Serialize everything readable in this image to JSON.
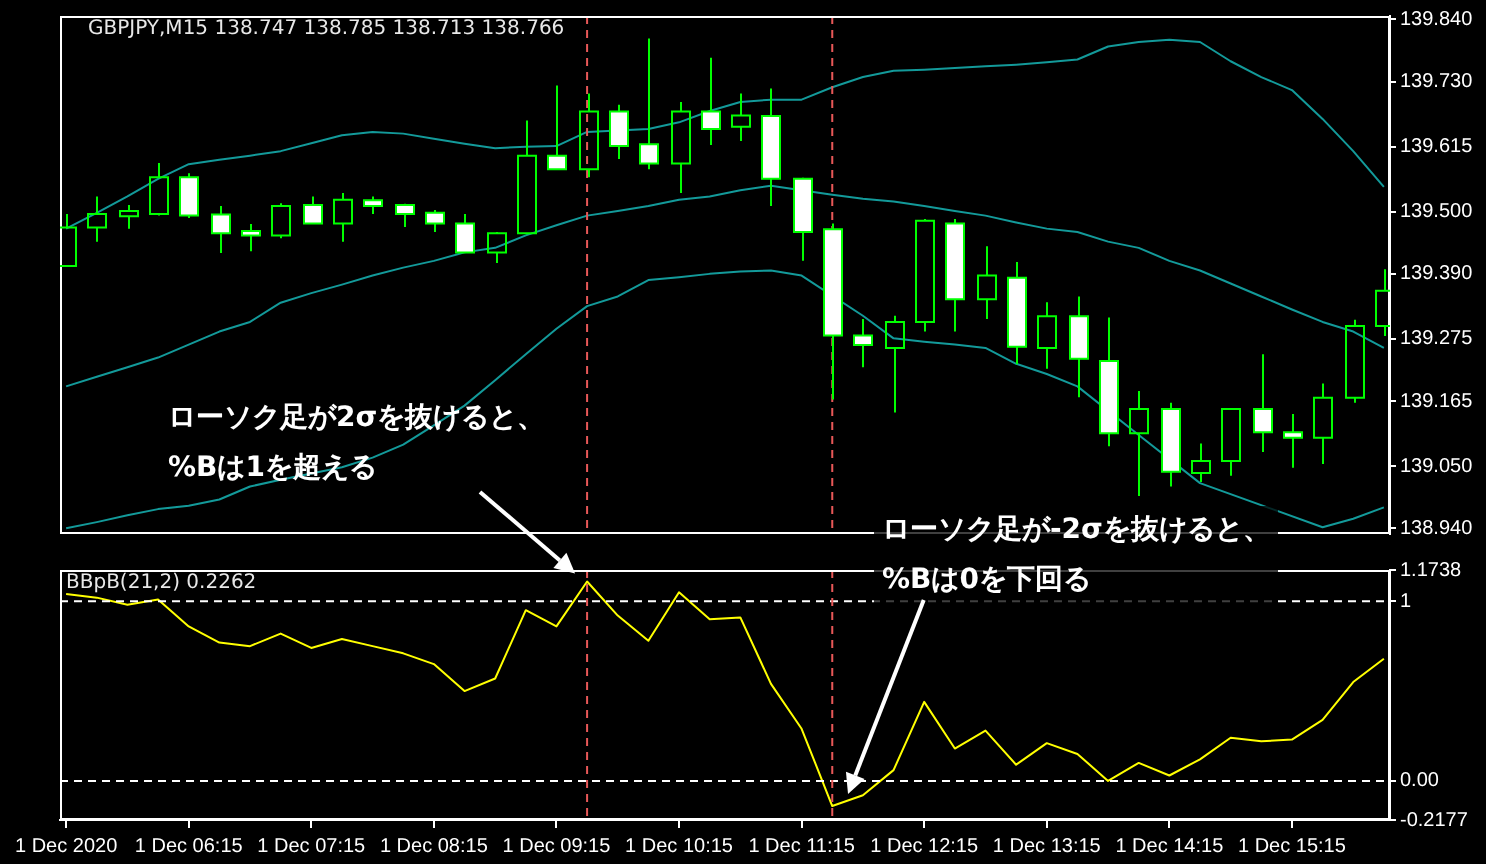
{
  "chart_data": [
    {
      "type": "candlestick",
      "title": "GBPJPY,M15 138.747 138.785 138.713 138.766",
      "color": "#00ff00",
      "colors": [
        "#00ff00",
        "#00ff00",
        "#00ff00",
        "#00ff00",
        "#ffffff",
        "#ffffff",
        "#ffffff",
        "#00ff00",
        "#ffffff",
        "#00ff00",
        "#ffffff",
        "#ffffff",
        "#ffffff",
        "#ffffff",
        "#00ff00",
        "#00ff00",
        "#ffffff",
        "#00ff00",
        "#ffffff",
        "#ffffff",
        "#00ff00",
        "#ffffff",
        "#00ff00",
        "#ffffff",
        "#ffffff",
        "#ffffff",
        "#ffffff",
        "#00ff00",
        "#00ff00",
        "#ffffff",
        "#00ff00",
        "#ffffff",
        "#00ff00",
        "#ffffff",
        "#ffffff",
        "#00ff00",
        "#ffffff",
        "#00ff00",
        "#00ff00",
        "#ffffff",
        "#ffffff",
        "#00ff00",
        "#00ff00",
        "#00ff00"
      ],
      "x": [
        "2020-12-01T05:15",
        "2020-12-01T05:30",
        "2020-12-01T05:45",
        "2020-12-01T06:00",
        "2020-12-01T06:15",
        "2020-12-01T06:30",
        "2020-12-01T06:45",
        "2020-12-01T07:00",
        "2020-12-01T07:15",
        "2020-12-01T07:30",
        "2020-12-01T07:45",
        "2020-12-01T08:00",
        "2020-12-01T08:15",
        "2020-12-01T08:30",
        "2020-12-01T08:45",
        "2020-12-01T09:00",
        "2020-12-01T09:15",
        "2020-12-01T09:30",
        "2020-12-01T09:45",
        "2020-12-01T10:00",
        "2020-12-01T10:15",
        "2020-12-01T10:30",
        "2020-12-01T10:45",
        "2020-12-01T11:00",
        "2020-12-01T11:15",
        "2020-12-01T11:30",
        "2020-12-01T11:45",
        "2020-12-01T12:00",
        "2020-12-01T12:15",
        "2020-12-01T12:30",
        "2020-12-01T12:45",
        "2020-12-01T13:00",
        "2020-12-01T13:15",
        "2020-12-01T13:30",
        "2020-12-01T13:45",
        "2020-12-01T14:00",
        "2020-12-01T14:15",
        "2020-12-01T14:30",
        "2020-12-01T14:45",
        "2020-12-01T15:00",
        "2020-12-01T15:15",
        "2020-12-01T15:30",
        "2020-12-01T15:45",
        "2020-12-01T16:00"
      ],
      "ohlc": [
        [
          139.404,
          139.496,
          139.402,
          139.472
        ],
        [
          139.472,
          139.527,
          139.447,
          139.496
        ],
        [
          139.492,
          139.512,
          139.47,
          139.501
        ],
        [
          139.496,
          139.586,
          139.493,
          139.561
        ],
        [
          139.561,
          139.568,
          139.489,
          139.493
        ],
        [
          139.495,
          139.51,
          139.427,
          139.462
        ],
        [
          139.466,
          139.478,
          139.43,
          139.458
        ],
        [
          139.458,
          139.515,
          139.453,
          139.51
        ],
        [
          139.512,
          139.527,
          139.478,
          139.479
        ],
        [
          139.479,
          139.533,
          139.447,
          139.521
        ],
        [
          139.52,
          139.527,
          139.496,
          139.51
        ],
        [
          139.512,
          139.514,
          139.473,
          139.496
        ],
        [
          139.498,
          139.503,
          139.464,
          139.479
        ],
        [
          139.479,
          139.496,
          139.427,
          139.428
        ],
        [
          139.428,
          139.464,
          139.409,
          139.462
        ],
        [
          139.462,
          139.661,
          139.46,
          139.599
        ],
        [
          139.599,
          139.723,
          139.575,
          139.575
        ],
        [
          139.575,
          139.709,
          139.561,
          139.677
        ],
        [
          139.677,
          139.689,
          139.593,
          139.616
        ],
        [
          139.619,
          139.806,
          139.575,
          139.585
        ],
        [
          139.585,
          139.694,
          139.533,
          139.677
        ],
        [
          139.677,
          139.772,
          139.618,
          139.646
        ],
        [
          139.65,
          139.709,
          139.625,
          139.67
        ],
        [
          139.669,
          139.718,
          139.51,
          139.558
        ],
        [
          139.558,
          139.56,
          139.413,
          139.464
        ],
        [
          139.469,
          139.479,
          139.168,
          139.281
        ],
        [
          139.281,
          139.31,
          139.225,
          139.264
        ],
        [
          139.259,
          139.316,
          139.145,
          139.305
        ],
        [
          139.305,
          139.487,
          139.288,
          139.484
        ],
        [
          139.479,
          139.487,
          139.288,
          139.345
        ],
        [
          139.345,
          139.439,
          139.31,
          139.387
        ],
        [
          139.383,
          139.411,
          139.23,
          139.261
        ],
        [
          139.259,
          139.34,
          139.222,
          139.315
        ],
        [
          139.315,
          139.35,
          139.172,
          139.24
        ],
        [
          139.236,
          139.313,
          139.085,
          139.108
        ],
        [
          139.108,
          139.183,
          138.997,
          139.151
        ],
        [
          139.151,
          139.162,
          139.014,
          139.04
        ],
        [
          139.038,
          139.09,
          139.022,
          139.059
        ],
        [
          139.059,
          139.151,
          139.033,
          139.151
        ],
        [
          139.151,
          139.248,
          139.075,
          139.11
        ],
        [
          139.11,
          139.142,
          139.047,
          139.1
        ],
        [
          139.1,
          139.196,
          139.054,
          139.171
        ],
        [
          139.171,
          139.309,
          139.162,
          139.298
        ],
        [
          139.298,
          139.398,
          139.28,
          139.36
        ]
      ],
      "series": [
        {
          "type": "line",
          "color": "#139a9a",
          "values": [
            139.47,
            139.498,
            139.527,
            139.558,
            139.584,
            139.592,
            139.599,
            139.607,
            139.621,
            139.635,
            139.641,
            139.638,
            139.629,
            139.62,
            139.612,
            139.615,
            139.616,
            139.641,
            null,
            139.646,
            139.658,
            139.678,
            139.694,
            139.698,
            139.698,
            139.72,
            139.738,
            139.749,
            139.751,
            139.754,
            139.757,
            139.76,
            139.764,
            139.769,
            139.792,
            139.8,
            139.804,
            139.8,
            139.766,
            139.738,
            139.715,
            139.664,
            139.607,
            139.544
          ]
        },
        {
          "type": "line",
          "color": "#139a9a",
          "values": [
            139.191,
            139.208,
            139.225,
            139.242,
            139.265,
            139.288,
            139.305,
            139.339,
            139.356,
            139.371,
            139.387,
            139.401,
            139.413,
            139.428,
            139.436,
            139.458,
            139.476,
            139.493,
            139.501,
            139.51,
            139.521,
            139.527,
            139.538,
            139.546,
            null,
            139.53,
            139.523,
            139.518,
            139.51,
            139.501,
            139.493,
            139.481,
            139.47,
            139.464,
            139.447,
            139.436,
            139.413,
            139.396,
            139.373,
            139.35,
            139.327,
            139.305,
            139.288,
            139.259
          ]
        },
        {
          "type": "line",
          "color": "#139a9a",
          "values": [
            138.94,
            138.951,
            138.963,
            138.974,
            138.98,
            138.991,
            139.014,
            139.026,
            139.037,
            139.048,
            139.065,
            139.088,
            139.122,
            139.157,
            139.202,
            139.248,
            139.293,
            139.333,
            139.35,
            139.379,
            139.384,
            139.39,
            139.394,
            139.396,
            139.387,
            null,
            139.316,
            139.276,
            139.27,
            139.265,
            139.259,
            139.231,
            139.213,
            139.191,
            null,
            139.105,
            null,
            139.02,
            null,
            null,
            null,
            138.942,
            138.957,
            138.977
          ]
        }
      ],
      "xlim": [
        "2020-12-01T05:12",
        "2020-12-01T16:03"
      ],
      "ylim": [
        138.93,
        139.846
      ],
      "yticks": [
        {
          "value": 139.84,
          "label": "139.840"
        },
        {
          "value": 139.73,
          "label": "139.730"
        },
        139.615,
        {
          "value": 139.5,
          "label": "139.500"
        },
        {
          "value": 139.39,
          "label": "139.390"
        },
        139.275,
        139.165,
        {
          "value": 139.05,
          "label": "139.050"
        },
        {
          "value": 138.94,
          "label": "138.940"
        }
      ],
      "tick_labels": "y",
      "grid": false,
      "legend": false,
      "ref_lines": [
        {
          "axis": "x",
          "value": "2020-12-01T09:30",
          "color": "#e85858",
          "line_style": "dashed"
        },
        {
          "axis": "x",
          "value": "2020-12-01T11:30",
          "color": "#e85858",
          "line_style": "dashed"
        }
      ],
      "annotations": [
        "ローソク足が2σを抜けると、\n%Bは1を超える",
        "ローソク足が-2σを抜けると、\n%Bは0を下回る"
      ]
    },
    {
      "type": "line",
      "title": "BBpB(21,2) 0.2262",
      "x": [
        "2020-12-01T05:15",
        "2020-12-01T05:30",
        "2020-12-01T05:45",
        "2020-12-01T06:00",
        "2020-12-01T06:15",
        "2020-12-01T06:30",
        "2020-12-01T06:45",
        "2020-12-01T07:00",
        "2020-12-01T07:15",
        "2020-12-01T07:30",
        "2020-12-01T07:45",
        "2020-12-01T08:00",
        "2020-12-01T08:15",
        "2020-12-01T08:30",
        "2020-12-01T08:45",
        "2020-12-01T09:00",
        "2020-12-01T09:15",
        "2020-12-01T09:30",
        "2020-12-01T09:45",
        "2020-12-01T10:00",
        "2020-12-01T10:15",
        "2020-12-01T10:30",
        "2020-12-01T10:45",
        "2020-12-01T11:00",
        "2020-12-01T11:15",
        "2020-12-01T11:30",
        "2020-12-01T11:45",
        "2020-12-01T12:00",
        "2020-12-01T12:15",
        "2020-12-01T12:30",
        "2020-12-01T12:45",
        "2020-12-01T13:00",
        "2020-12-01T13:15",
        "2020-12-01T13:30",
        "2020-12-01T13:45",
        "2020-12-01T14:00",
        "2020-12-01T14:15",
        "2020-12-01T14:30",
        "2020-12-01T14:45",
        "2020-12-01T15:00",
        "2020-12-01T15:15",
        "2020-12-01T15:30",
        "2020-12-01T15:45",
        "2020-12-01T16:00"
      ],
      "series": [
        {
          "type": "line",
          "color": "#ffff00",
          "values": [
            1.04,
            1.02,
            0.98,
            1.01,
            0.86,
            0.77,
            0.75,
            0.82,
            0.74,
            0.79,
            0.75,
            0.71,
            0.65,
            0.5,
            0.57,
            0.95,
            0.86,
            1.11,
            0.92,
            0.78,
            1.05,
            0.9,
            0.91,
            0.54,
            0.29,
            -0.14,
            -0.08,
            0.06,
            0.44,
            0.18,
            0.28,
            0.09,
            0.21,
            0.15,
            0,
            0.1,
            0.03,
            0.12,
            0.24,
            0.22,
            0.23,
            0.34,
            0.55,
            0.68
          ]
        }
      ],
      "xlim": [
        "2020-12-01T05:12",
        "2020-12-01T16:03"
      ],
      "ylim": [
        -0.2177,
        1.1738
      ],
      "xticks": [
        {
          "value": "2020-12-01T05:15",
          "label": "1 Dec 2020"
        },
        {
          "value": "2020-12-01T06:15",
          "label": "1 Dec 06:15"
        },
        {
          "value": "2020-12-01T07:15",
          "label": "1 Dec 07:15"
        },
        {
          "value": "2020-12-01T08:15",
          "label": "1 Dec 08:15"
        },
        {
          "value": "2020-12-01T09:15",
          "label": "1 Dec 09:15"
        },
        {
          "value": "2020-12-01T10:15",
          "label": "1 Dec 10:15"
        },
        {
          "value": "2020-12-01T11:15",
          "label": "1 Dec 11:15"
        },
        {
          "value": "2020-12-01T12:15",
          "label": "1 Dec 12:15"
        },
        {
          "value": "2020-12-01T13:15",
          "label": "1 Dec 13:15"
        },
        {
          "value": "2020-12-01T14:15",
          "label": "1 Dec 14:15"
        },
        {
          "value": "2020-12-01T15:15",
          "label": "1 Dec 15:15"
        }
      ],
      "yticks": [
        1.1738,
        1,
        {
          "value": 0,
          "label": "0.00"
        },
        -0.2177
      ],
      "grid": false,
      "legend": false,
      "marker": "none",
      "ref_lines": [
        {
          "axis": "y",
          "value": 1,
          "color": "#ffffff",
          "line_style": "dashed"
        },
        {
          "axis": "y",
          "value": 0,
          "color": "#ffffff",
          "line_style": "dashed"
        },
        {
          "axis": "x",
          "value": "2020-12-01T09:30",
          "color": "#e85858",
          "line_style": "dashed"
        },
        {
          "axis": "x",
          "value": "2020-12-01T11:30",
          "color": "#e85858",
          "line_style": "dashed"
        }
      ]
    }
  ]
}
